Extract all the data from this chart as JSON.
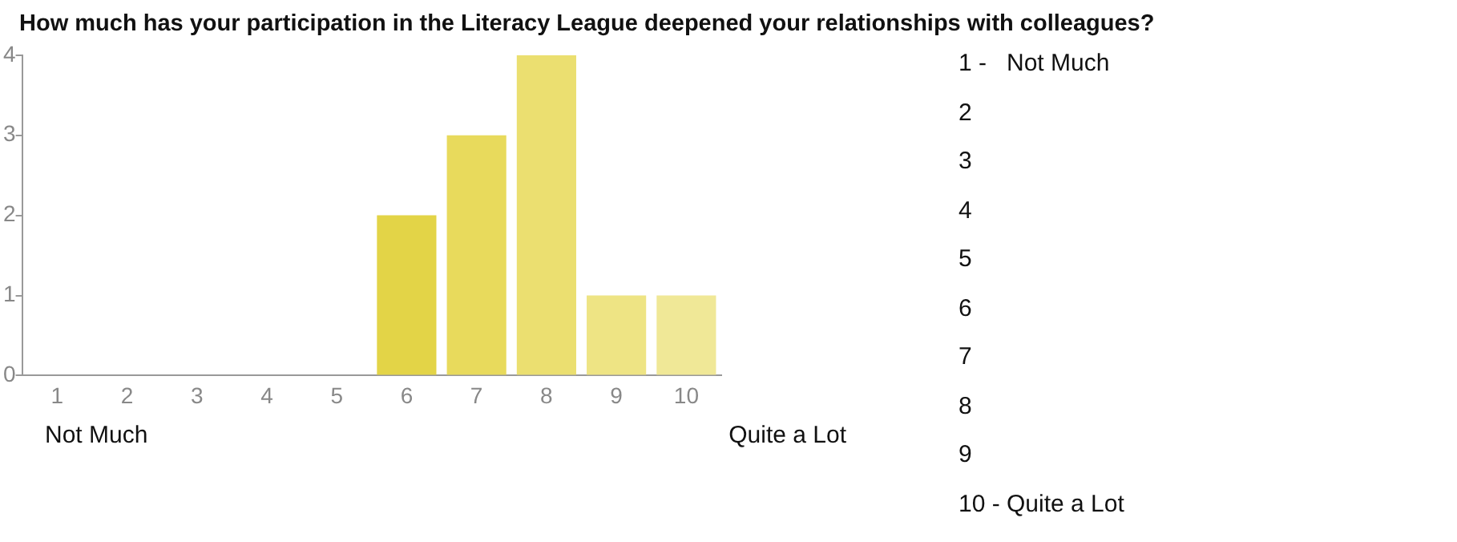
{
  "chart_data": {
    "type": "bar",
    "title": "How much has your participation in the Literacy League deepened your relationships with colleagues?",
    "categories": [
      "1",
      "2",
      "3",
      "4",
      "5",
      "6",
      "7",
      "8",
      "9",
      "10"
    ],
    "values": [
      0,
      0,
      0,
      0,
      0,
      2,
      3,
      4,
      1,
      1
    ],
    "colors": [
      "#d9c820",
      "#dccc2c",
      "#dfd038",
      "#e1d240",
      "#e2d344",
      "#e3d447",
      "#e8da5c",
      "#ebdf70",
      "#eee484",
      "#f0e897"
    ],
    "ylim": [
      0,
      4
    ],
    "yticks": [
      0,
      1,
      2,
      3,
      4
    ],
    "grid": false,
    "legend": false,
    "annotations": [
      "Not Much",
      "Quite a Lot",
      "1 -   Not Much",
      "2",
      "3",
      "4",
      "5",
      "6",
      "7",
      "8",
      "9",
      "10 - Quite a Lot"
    ]
  }
}
